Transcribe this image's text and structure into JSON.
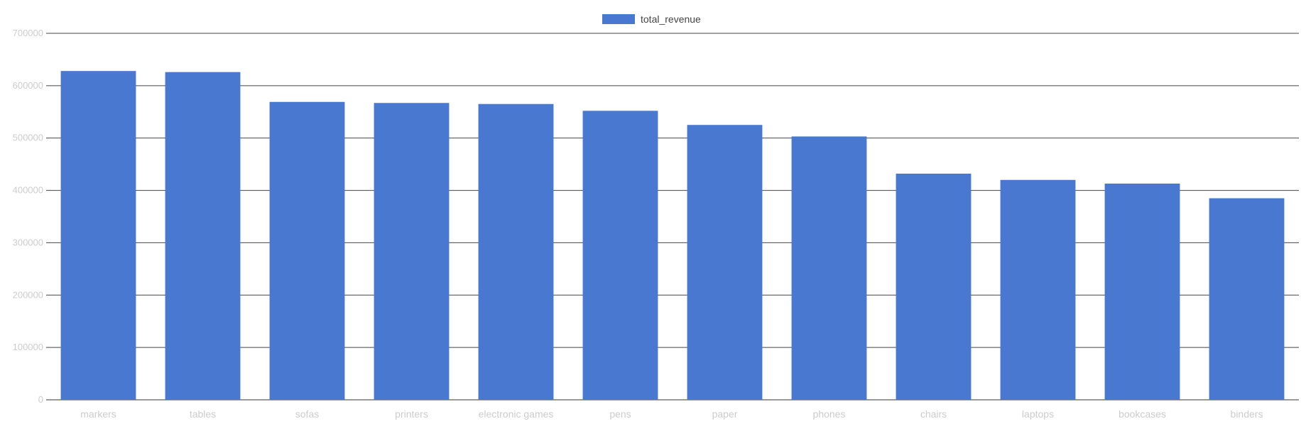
{
  "chart_data": {
    "type": "bar",
    "categories": [
      "markers",
      "tables",
      "sofas",
      "printers",
      "electronic games",
      "pens",
      "paper",
      "phones",
      "chairs",
      "laptops",
      "bookcases",
      "binders"
    ],
    "series": [
      {
        "name": "total_revenue",
        "color": "#4878d0",
        "values": [
          628000,
          626000,
          569000,
          567000,
          565000,
          552000,
          525000,
          503000,
          432000,
          420000,
          413000,
          385000
        ]
      }
    ],
    "ylim": [
      0,
      700000
    ],
    "yticks": [
      "0",
      "100000",
      "200000",
      "300000",
      "400000",
      "500000",
      "600000",
      "700000"
    ],
    "grid": true,
    "legend_position": "top-center"
  }
}
